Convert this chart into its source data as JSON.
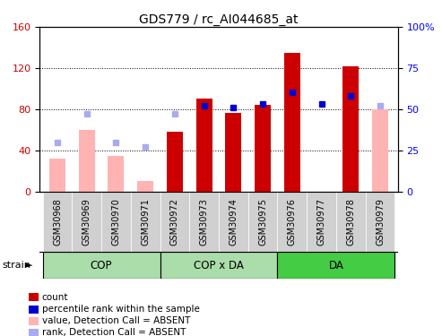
{
  "title": "GDS779 / rc_AI044685_at",
  "samples": [
    "GSM30968",
    "GSM30969",
    "GSM30970",
    "GSM30971",
    "GSM30972",
    "GSM30973",
    "GSM30974",
    "GSM30975",
    "GSM30976",
    "GSM30977",
    "GSM30978",
    "GSM30979"
  ],
  "count_values": [
    null,
    null,
    null,
    null,
    58,
    90,
    76,
    84,
    135,
    null,
    122,
    null
  ],
  "count_absent": [
    32,
    60,
    35,
    10,
    null,
    null,
    null,
    null,
    null,
    null,
    null,
    80
  ],
  "rank_values": [
    null,
    null,
    null,
    null,
    null,
    52,
    51,
    53,
    60,
    53,
    58,
    null
  ],
  "rank_absent": [
    30,
    47,
    30,
    27,
    47,
    null,
    null,
    null,
    null,
    null,
    null,
    52
  ],
  "group_defs": [
    [
      0,
      3,
      "#aaddaa",
      "COP"
    ],
    [
      4,
      7,
      "#aaddaa",
      "COP x DA"
    ],
    [
      8,
      11,
      "#44cc44",
      "DA"
    ]
  ],
  "ylim_left": [
    0,
    160
  ],
  "ylim_right": [
    0,
    100
  ],
  "yticks_left": [
    0,
    40,
    80,
    120,
    160
  ],
  "yticks_right": [
    0,
    25,
    50,
    75,
    100
  ],
  "ytick_right_labels": [
    "0",
    "25",
    "50",
    "75",
    "100%"
  ],
  "bar_color_count": "#cc0000",
  "bar_color_absent": "#ffb3b3",
  "dot_color_rank": "#0000cc",
  "dot_color_rank_absent": "#aaaaee",
  "bar_width": 0.55,
  "cell_color": "#d0d0d0",
  "legend_items": [
    {
      "color": "#cc0000",
      "label": "count"
    },
    {
      "color": "#0000cc",
      "label": "percentile rank within the sample"
    },
    {
      "color": "#ffb3b3",
      "label": "value, Detection Call = ABSENT"
    },
    {
      "color": "#aaaaee",
      "label": "rank, Detection Call = ABSENT"
    }
  ]
}
